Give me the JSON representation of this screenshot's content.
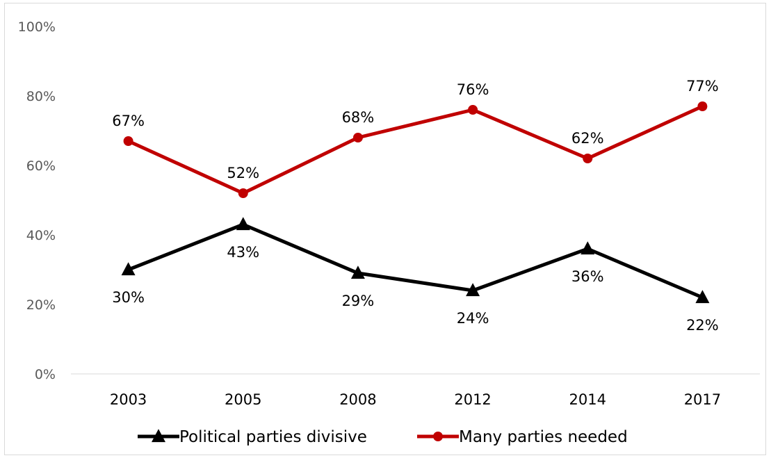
{
  "chart_data": {
    "type": "line",
    "categories": [
      "2003",
      "2005",
      "2008",
      "2012",
      "2014",
      "2017"
    ],
    "ylim": [
      0,
      100
    ],
    "yticks": [
      0,
      20,
      40,
      60,
      80,
      100
    ],
    "ytick_labels": [
      "0%",
      "20%",
      "40%",
      "60%",
      "80%",
      "100%"
    ],
    "grid": false,
    "legend_position": "bottom",
    "series": [
      {
        "name": "Political parties divisive",
        "values": [
          30,
          43,
          29,
          24,
          36,
          22
        ],
        "labels": [
          "30%",
          "43%",
          "29%",
          "24%",
          "36%",
          "22%"
        ],
        "color": "#000000",
        "marker": "triangle",
        "label_position": "below"
      },
      {
        "name": "Many parties needed",
        "values": [
          67,
          52,
          68,
          76,
          62,
          77
        ],
        "labels": [
          "67%",
          "52%",
          "68%",
          "76%",
          "62%",
          "77%"
        ],
        "color": "#c00000",
        "marker": "circle",
        "label_position": "above"
      }
    ]
  }
}
